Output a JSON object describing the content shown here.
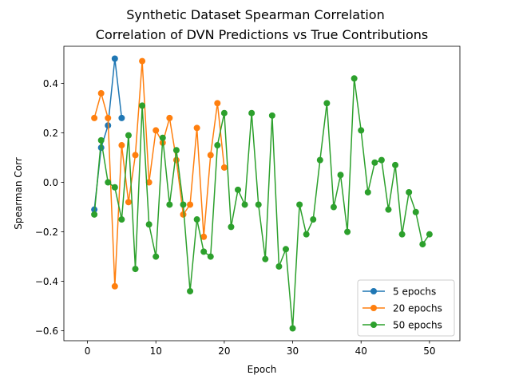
{
  "chart_data": {
    "type": "line",
    "title": "Synthetic Dataset Spearman Correlation",
    "subtitle": "Correlation of DVN Predictions vs True Contributions",
    "xlabel": "Epoch",
    "ylabel": "Spearman Corr",
    "xlim": [
      -3.45,
      54.45
    ],
    "ylim": [
      -0.64,
      0.55
    ],
    "x_ticks": [
      0,
      10,
      20,
      30,
      40,
      50
    ],
    "y_ticks": [
      -0.6,
      -0.4,
      -0.2,
      0.0,
      0.2,
      0.4
    ],
    "x_tick_labels": [
      "0",
      "10",
      "20",
      "30",
      "40",
      "50"
    ],
    "y_tick_labels": [
      "−0.6",
      "−0.4",
      "−0.2",
      "0.0",
      "0.2",
      "0.4"
    ],
    "grid": false,
    "legend_position": "lower right",
    "series": [
      {
        "name": "5 epochs",
        "color": "#1f77b4",
        "x": [
          1,
          2,
          3,
          4,
          5
        ],
        "y": [
          -0.11,
          0.14,
          0.23,
          0.5,
          0.26
        ]
      },
      {
        "name": "20 epochs",
        "color": "#ff7f0e",
        "x": [
          1,
          2,
          3,
          4,
          5,
          6,
          7,
          8,
          9,
          10,
          11,
          12,
          13,
          14,
          15,
          16,
          17,
          18,
          19,
          20
        ],
        "y": [
          0.26,
          0.36,
          0.26,
          -0.42,
          0.15,
          -0.08,
          0.11,
          0.49,
          0.0,
          0.21,
          0.16,
          0.26,
          0.09,
          -0.13,
          -0.09,
          0.22,
          -0.22,
          0.11,
          0.32,
          0.06
        ]
      },
      {
        "name": "50 epochs",
        "color": "#2ca02c",
        "x": [
          1,
          2,
          3,
          4,
          5,
          6,
          7,
          8,
          9,
          10,
          11,
          12,
          13,
          14,
          15,
          16,
          17,
          18,
          19,
          20,
          21,
          22,
          23,
          24,
          25,
          26,
          27,
          28,
          29,
          30,
          31,
          32,
          33,
          34,
          35,
          36,
          37,
          38,
          39,
          40,
          41,
          42,
          43,
          44,
          45,
          46,
          47,
          48,
          49,
          50
        ],
        "y": [
          -0.13,
          0.17,
          0.0,
          -0.02,
          -0.15,
          0.19,
          -0.35,
          0.31,
          -0.17,
          -0.3,
          0.18,
          -0.09,
          0.13,
          -0.09,
          -0.44,
          -0.15,
          -0.28,
          -0.3,
          0.15,
          0.28,
          -0.18,
          -0.03,
          -0.09,
          0.28,
          -0.09,
          -0.31,
          0.27,
          -0.34,
          -0.27,
          -0.59,
          -0.09,
          -0.21,
          -0.15,
          0.09,
          0.32,
          -0.1,
          0.03,
          -0.2,
          0.42,
          0.21,
          -0.04,
          0.08,
          0.09,
          -0.11,
          0.07,
          -0.21,
          -0.04,
          -0.12,
          -0.25,
          -0.21
        ]
      }
    ]
  }
}
